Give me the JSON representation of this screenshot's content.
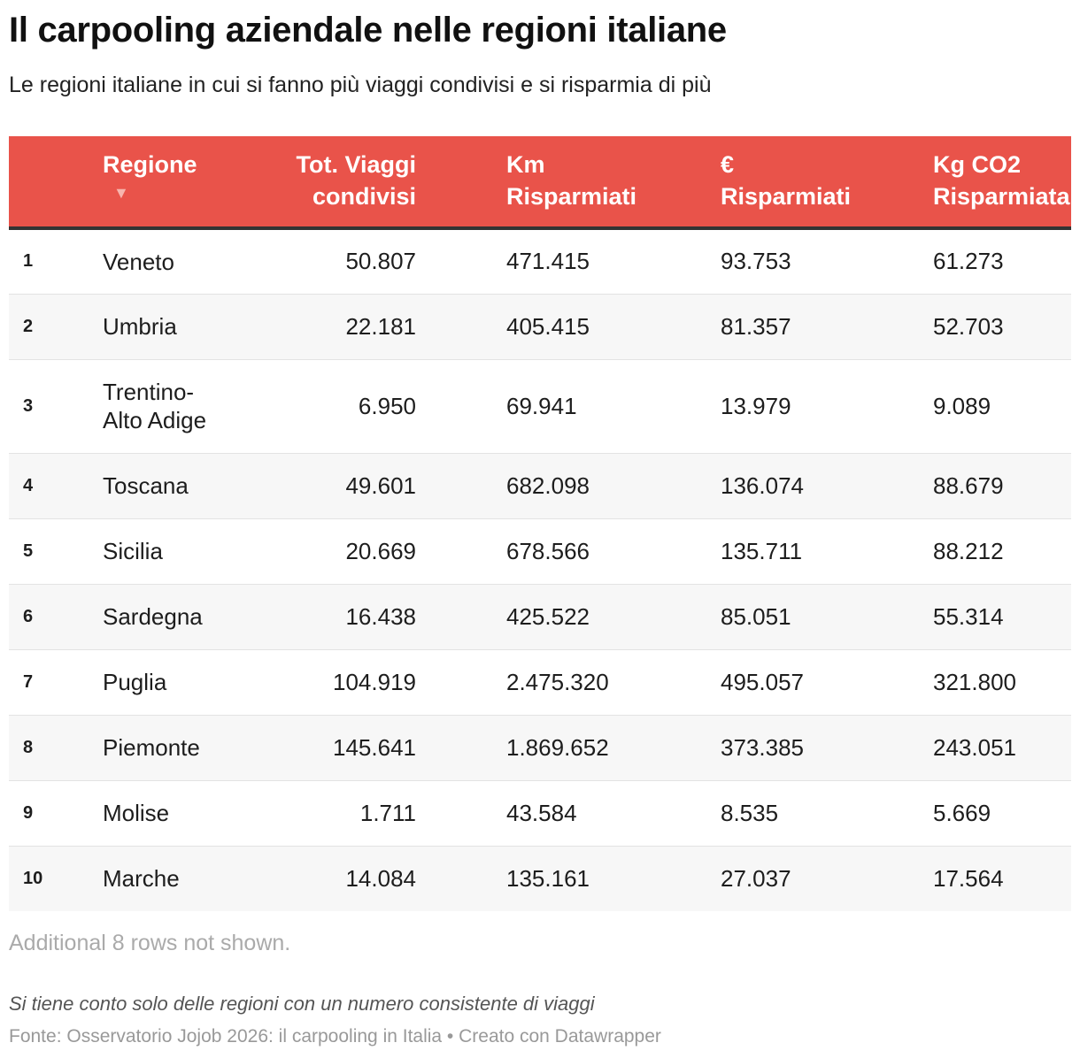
{
  "chart_data": {
    "type": "table",
    "title": "Il carpooling aziendale nelle regioni italiane",
    "subtitle": "Le regioni italiane in cui si fanno più viaggi condivisi e si risparmia di più",
    "columns": [
      {
        "line1": "",
        "line2": ""
      },
      {
        "line1": "Regione",
        "line2": "▼"
      },
      {
        "line1": "Tot. Viaggi",
        "line2": "condivisi"
      },
      {
        "line1": "Km",
        "line2": "Risparmiati"
      },
      {
        "line1": "€",
        "line2": "Risparmiati"
      },
      {
        "line1": "Kg CO2",
        "line2": "Risparmiata"
      }
    ],
    "rows": [
      {
        "rank": "1",
        "region": "Veneto",
        "viaggi": "50.807",
        "km": "471.415",
        "euro": "93.753",
        "co2": "61.273"
      },
      {
        "rank": "2",
        "region": "Umbria",
        "viaggi": "22.181",
        "km": "405.415",
        "euro": "81.357",
        "co2": "52.703"
      },
      {
        "rank": "3",
        "region": "Trentino-Alto Adige",
        "region_line1": "Trentino-",
        "region_line2": "Alto Adige",
        "viaggi": "6.950",
        "km": "69.941",
        "euro": "13.979",
        "co2": "9.089"
      },
      {
        "rank": "4",
        "region": "Toscana",
        "viaggi": "49.601",
        "km": "682.098",
        "euro": "136.074",
        "co2": "88.679"
      },
      {
        "rank": "5",
        "region": "Sicilia",
        "viaggi": "20.669",
        "km": "678.566",
        "euro": "135.711",
        "co2": "88.212"
      },
      {
        "rank": "6",
        "region": "Sardegna",
        "viaggi": "16.438",
        "km": "425.522",
        "euro": "85.051",
        "co2": "55.314"
      },
      {
        "rank": "7",
        "region": "Puglia",
        "viaggi": "104.919",
        "km": "2.475.320",
        "euro": "495.057",
        "co2": "321.800"
      },
      {
        "rank": "8",
        "region": "Piemonte",
        "viaggi": "145.641",
        "km": "1.869.652",
        "euro": "373.385",
        "co2": "243.051"
      },
      {
        "rank": "9",
        "region": "Molise",
        "viaggi": "1.711",
        "km": "43.584",
        "euro": "8.535",
        "co2": "5.669"
      },
      {
        "rank": "10",
        "region": "Marche",
        "viaggi": "14.084",
        "km": "135.161",
        "euro": "27.037",
        "co2": "17.564"
      }
    ],
    "more_rows_note": "Additional 8 rows not shown.",
    "notes": "Si tiene conto solo delle regioni con un numero consistente di viaggi",
    "source": "Fonte: Osservatorio Jojob 2026: il carpooling in Italia • Creato con Datawrapper",
    "header_color": "#e9534a",
    "stripe_color": "#f7f7f7"
  }
}
